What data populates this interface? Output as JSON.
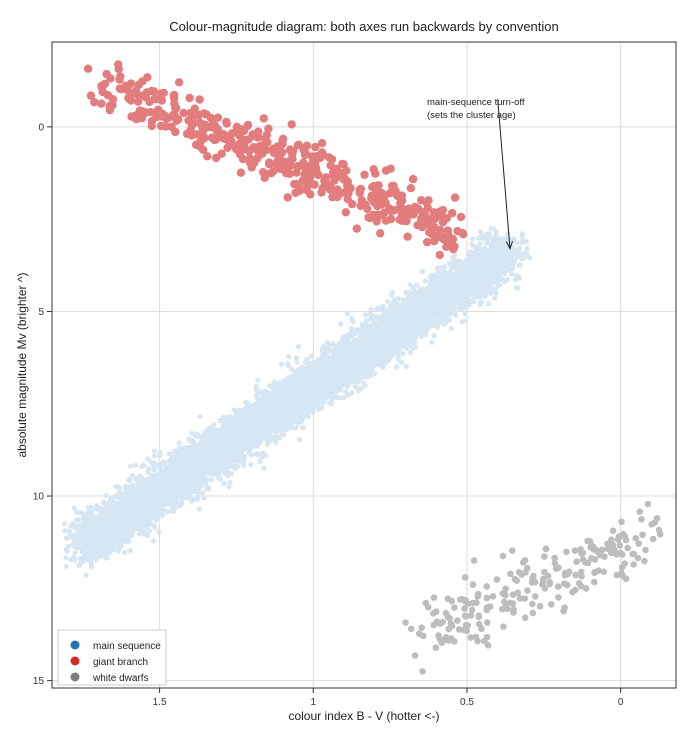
{
  "chart_data": {
    "type": "scatter",
    "title": "Colour-magnitude diagram: both axes run backwards by convention",
    "xlabel": "colour index B - V  (hotter <-)",
    "ylabel": "absolute magnitude Mv  (brighter ^)",
    "xlim": [
      1.85,
      -0.18
    ],
    "ylim": [
      15.2,
      -2.3
    ],
    "x_reversed": true,
    "y_reversed": true,
    "grid": true,
    "xticks": [
      1.5,
      1,
      0.5,
      0
    ],
    "xtick_labels": [
      "1.5",
      "1",
      "0.5",
      "0"
    ],
    "yticks": [
      0,
      5,
      10,
      15
    ],
    "ytick_labels": [
      "0",
      "5",
      "10",
      "15"
    ],
    "legend_position": "bottom-left",
    "series": [
      {
        "name": "main sequence",
        "legend_color": "#1f77b4",
        "marker_color": "#d6e6f2",
        "distribution": "band",
        "approx_count": 9000,
        "band_ends": [
          [
            1.75,
            11.3
          ],
          [
            0.37,
            3.4
          ]
        ],
        "band_spread_mag": 0.3
      },
      {
        "name": "giant branch",
        "legend_color": "#d62728",
        "marker_color": "#e37c7c",
        "distribution": "band",
        "approx_count": 450,
        "band_ends": [
          [
            1.7,
            -1.2
          ],
          [
            0.55,
            2.8
          ]
        ],
        "band_spread_mag": 0.35
      },
      {
        "name": "white dwarfs",
        "legend_color": "#7f7f7f",
        "marker_color": "#bdbdbd",
        "distribution": "band",
        "approx_count": 220,
        "band_ends": [
          [
            0.65,
            13.8
          ],
          [
            -0.12,
            11.0
          ]
        ],
        "band_spread_mag": 0.45
      }
    ],
    "annotations": [
      {
        "text": [
          "main-sequence turn-off",
          "(sets the cluster age)"
        ],
        "text_at": [
          0.63,
          -0.6
        ],
        "arrow_from": [
          0.4,
          -0.75
        ],
        "arrow_to": [
          0.36,
          3.3
        ]
      }
    ]
  }
}
